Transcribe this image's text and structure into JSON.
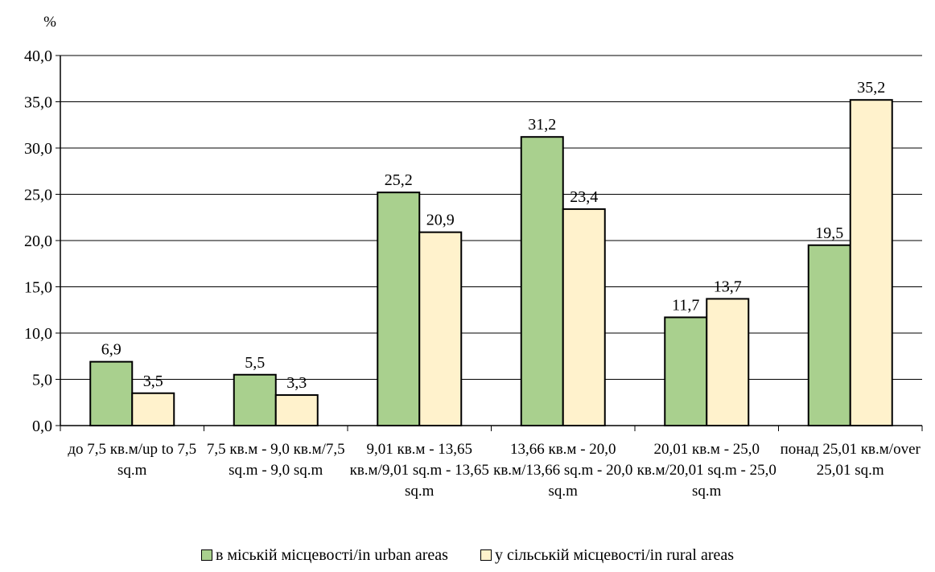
{
  "chart_data": {
    "type": "bar",
    "ylabel": "%",
    "ylim": [
      0,
      40
    ],
    "yticks": [
      "0,0",
      "5,0",
      "10,0",
      "15,0",
      "20,0",
      "25,0",
      "30,0",
      "35,0",
      "40,0"
    ],
    "grid": true,
    "legend_position": "bottom",
    "categories": [
      "до 7,5 кв.м/up to 7,5 sq.m",
      "7,5 кв.м - 9,0 кв.м/7,5 sq.m - 9,0 sq.m",
      "9,01 кв.м - 13,65 кв.м/9,01 sq.m - 13,65 sq.m",
      "13,66 кв.м - 20,0 кв.м/13,66 sq.m - 20,0 sq.m",
      "20,01 кв.м - 25,0 кв.м/20,01 sq.m - 25,0 sq.m",
      "понад 25,01 кв.м/over 25,01 sq.m"
    ],
    "series": [
      {
        "name": "в міській місцевості/in urban areas",
        "color": "#a9d08e",
        "values": [
          6.9,
          5.5,
          25.2,
          31.2,
          11.7,
          19.5
        ],
        "labels": [
          "6,9",
          "5,5",
          "25,2",
          "31,2",
          "11,7",
          "19,5"
        ]
      },
      {
        "name": "у сільській місцевості/in rural areas",
        "color": "#fff2cc",
        "values": [
          3.5,
          3.3,
          20.9,
          23.4,
          13.7,
          35.2
        ],
        "labels": [
          "3,5",
          "3,3",
          "20,9",
          "23,4",
          "13,7",
          "35,2"
        ]
      }
    ]
  }
}
